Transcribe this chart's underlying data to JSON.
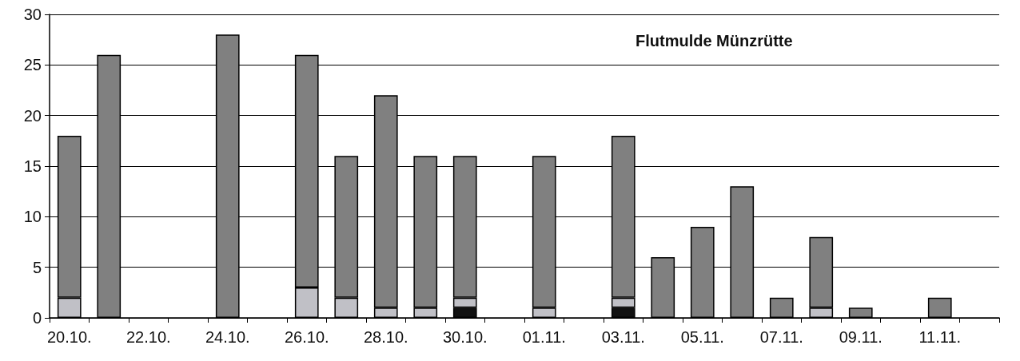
{
  "chart_data": {
    "type": "bar",
    "title": "Flutmulde Münzrütte",
    "stacked": true,
    "categories": [
      "20.10.",
      null,
      "22.10.",
      null,
      "24.10.",
      null,
      "26.10.",
      null,
      "28.10.",
      null,
      "30.10.",
      null,
      "01.11.",
      null,
      "03.11.",
      null,
      "05.11.",
      null,
      "07.11.",
      null,
      "09.11.",
      null,
      "11.11.",
      null
    ],
    "series": [
      {
        "color": "#111111",
        "values": [
          null,
          null,
          null,
          null,
          null,
          null,
          null,
          null,
          null,
          null,
          1,
          null,
          null,
          null,
          1,
          null,
          null,
          null,
          null,
          null,
          null,
          null,
          null,
          null
        ]
      },
      {
        "color": "#c0c0c6",
        "values": [
          2,
          null,
          null,
          null,
          null,
          null,
          3,
          2,
          1,
          1,
          1,
          null,
          1,
          null,
          1,
          null,
          null,
          null,
          null,
          1,
          null,
          null,
          null,
          null
        ]
      },
      {
        "color": "#808080",
        "values": [
          16,
          26,
          null,
          null,
          28,
          null,
          23,
          14,
          21,
          15,
          14,
          null,
          15,
          null,
          16,
          6,
          9,
          13,
          2,
          7,
          1,
          null,
          2,
          null
        ]
      }
    ],
    "ylim": [
      0,
      30
    ],
    "yticks": [
      0,
      5,
      10,
      15,
      20,
      25,
      30
    ],
    "grid": "y"
  }
}
